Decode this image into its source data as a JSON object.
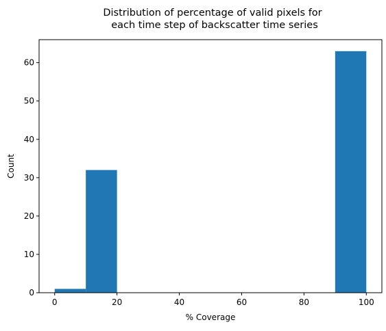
{
  "chart_data": {
    "type": "bar",
    "title_line1": "Distribution of percentage of valid pixels for",
    "title_line2": "each time step of backscatter time series",
    "xlabel": "% Coverage",
    "ylabel": "Count",
    "xlim": [
      -5,
      105
    ],
    "ylim": [
      0,
      66
    ],
    "x_ticks": [
      0,
      20,
      40,
      60,
      80,
      100
    ],
    "y_ticks": [
      0,
      10,
      20,
      30,
      40,
      50,
      60
    ],
    "bins": [
      {
        "start": 0,
        "end": 10,
        "count": 1
      },
      {
        "start": 10,
        "end": 20,
        "count": 32
      },
      {
        "start": 20,
        "end": 30,
        "count": 0
      },
      {
        "start": 30,
        "end": 40,
        "count": 0
      },
      {
        "start": 40,
        "end": 50,
        "count": 0
      },
      {
        "start": 50,
        "end": 60,
        "count": 0
      },
      {
        "start": 60,
        "end": 70,
        "count": 0
      },
      {
        "start": 70,
        "end": 80,
        "count": 0
      },
      {
        "start": 80,
        "end": 90,
        "count": 0
      },
      {
        "start": 90,
        "end": 100,
        "count": 63
      }
    ],
    "bar_color": "#1f77b4",
    "grid": false,
    "legend": "none"
  }
}
